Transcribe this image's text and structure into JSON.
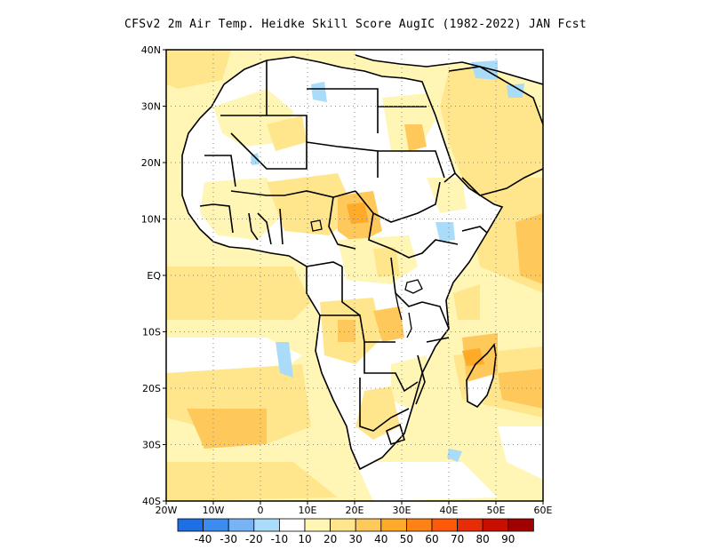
{
  "title": "CFSv2  2m Air Temp. Heidke Skill Score AugIC (1982-2022) JAN Fcst",
  "map": {
    "lon_range": [
      -20,
      60
    ],
    "lat_range": [
      -40,
      40
    ],
    "lat_labels": [
      "40N",
      "30N",
      "20N",
      "10N",
      "EQ",
      "10S",
      "20S",
      "30S",
      "40S"
    ],
    "lat_values": [
      40,
      30,
      20,
      10,
      0,
      -10,
      -20,
      -30,
      -40
    ],
    "lon_labels": [
      "20W",
      "10W",
      "0",
      "10E",
      "20E",
      "30E",
      "40E",
      "50E",
      "60E"
    ],
    "lon_values": [
      -20,
      -10,
      0,
      10,
      20,
      30,
      40,
      50,
      60
    ],
    "grid": "dotted",
    "land_color": "#ffffff"
  },
  "colorbar": {
    "colors": [
      "#1e6ee6",
      "#3c8cf0",
      "#78b4f5",
      "#aadcfa",
      "#ffffff",
      "#fff5b4",
      "#ffe68c",
      "#ffc85a",
      "#ffaa28",
      "#ff8214",
      "#ff5a0a",
      "#e62d05",
      "#c80f00",
      "#a00000"
    ],
    "labels": [
      "-40",
      "-30",
      "-20",
      "-10",
      "10",
      "20",
      "30",
      "40",
      "50",
      "60",
      "70",
      "80",
      "90"
    ]
  }
}
